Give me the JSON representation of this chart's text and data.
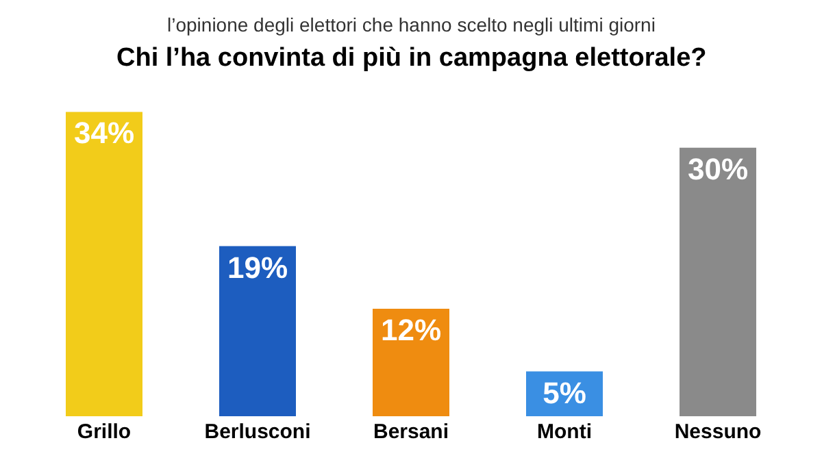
{
  "chart_data": {
    "type": "bar",
    "subtitle": "l’opinione degli elettori che hanno scelto negli ultimi giorni",
    "title": "Chi l’ha convinta di più in campagna elettorale?",
    "categories": [
      "Grillo",
      "Berlusconi",
      "Bersani",
      "Monti",
      "Nessuno"
    ],
    "values": [
      34,
      19,
      12,
      5,
      30
    ],
    "value_labels": [
      "34%",
      "19%",
      "12%",
      "5%",
      "30%"
    ],
    "colors": [
      "#f2cc1a",
      "#1d5dbf",
      "#ef8c10",
      "#3a8fe3",
      "#8a8a8a"
    ]
  }
}
